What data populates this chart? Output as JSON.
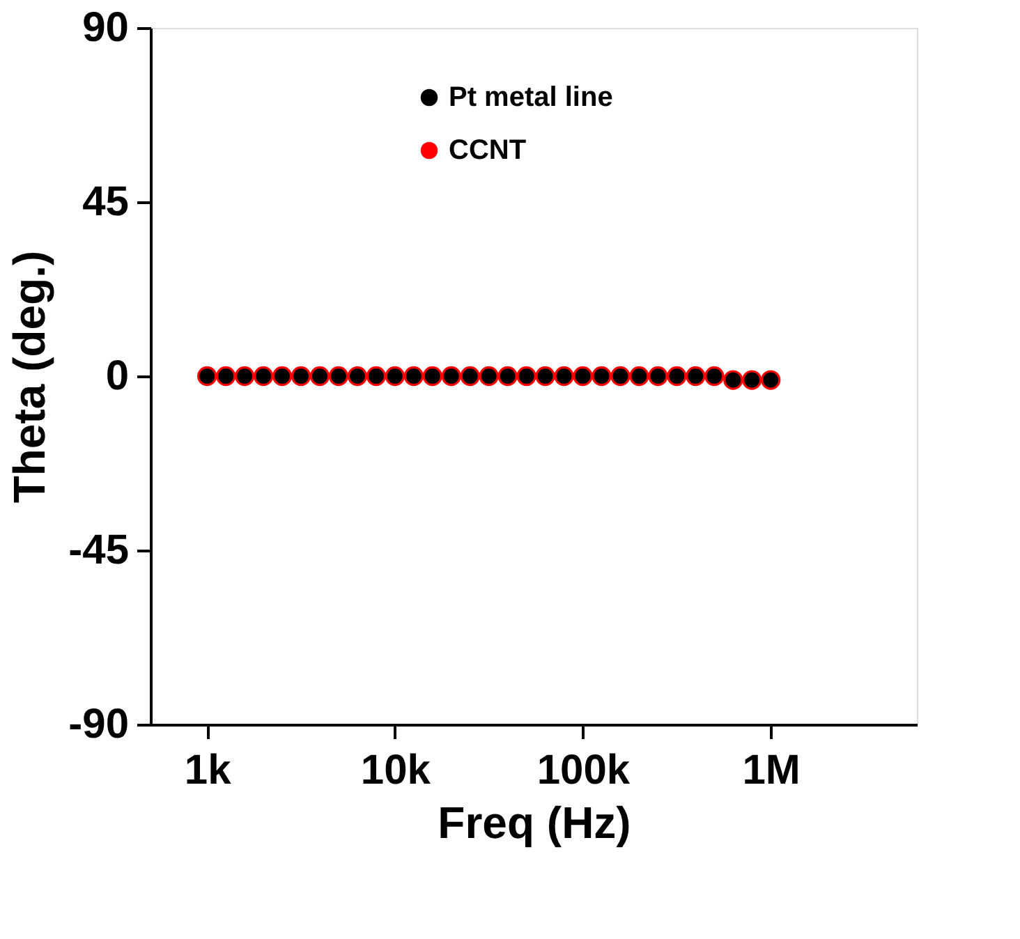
{
  "chart_data": {
    "type": "scatter",
    "xlabel": "Freq (Hz)",
    "ylabel": "Theta (deg.)",
    "log": "x",
    "grid": false,
    "legend": "top",
    "marker": "circle",
    "x": [
      1000,
      1259,
      1585,
      1995,
      2512,
      3162,
      3981,
      5012,
      6310,
      7943,
      10000,
      12589,
      15849,
      19953,
      25119,
      31623,
      39811,
      50119,
      63096,
      79433,
      100000,
      125893,
      158489,
      199526,
      251189,
      316228,
      398107,
      501187,
      630957,
      794328,
      1000000
    ],
    "xlim": [
      500,
      6000000
    ],
    "xticks": [
      {
        "value": 1000,
        "label": "1k"
      },
      {
        "value": 10000,
        "label": "10k"
      },
      {
        "value": 100000,
        "label": "100k"
      },
      {
        "value": 1000000,
        "label": "1M"
      }
    ],
    "ylim": [
      -90,
      90
    ],
    "yticks": [
      -90,
      -45,
      0,
      45,
      90
    ],
    "series": [
      {
        "name": "Pt metal line",
        "color": "#000000",
        "values": [
          0,
          0,
          0,
          0,
          0,
          0,
          0,
          0,
          0,
          0,
          0,
          0,
          0,
          0,
          0,
          0,
          0,
          0,
          0,
          0,
          0,
          0,
          0,
          0,
          0,
          0,
          0,
          0,
          -1,
          -1,
          -1
        ]
      },
      {
        "name": "CCNT",
        "color": "#ff0000",
        "values": [
          0,
          0,
          0,
          0,
          0,
          0,
          0,
          0,
          0,
          0,
          0,
          0,
          0,
          0,
          0,
          0,
          0,
          0,
          0,
          0,
          0,
          0,
          0,
          0,
          0,
          0,
          0,
          0,
          -1,
          -1,
          -1
        ]
      }
    ]
  }
}
